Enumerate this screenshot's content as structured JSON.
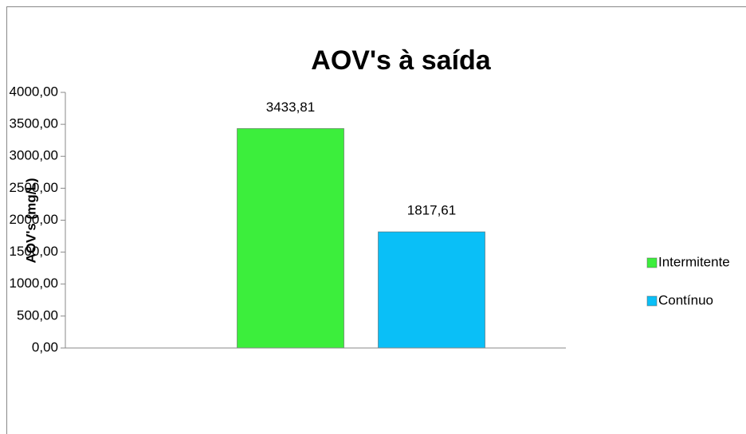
{
  "chart_data": {
    "type": "bar",
    "title": "AOV's à saída",
    "y_label": "AOV's (mg/L)",
    "categories": [
      null
    ],
    "series": [
      {
        "name": "Intermitente",
        "color": "#3cee3c",
        "values": [
          3433.81
        ],
        "value_labels": [
          "3433,81"
        ]
      },
      {
        "name": "Contínuo",
        "color": "#0abff7",
        "values": [
          1817.61
        ],
        "value_labels": [
          "1817,61"
        ]
      }
    ],
    "ylim": [
      0,
      4000
    ],
    "yticks": [
      {
        "value": 0,
        "label": "0,00"
      },
      {
        "value": 500,
        "label": "500,00"
      },
      {
        "value": 1000,
        "label": "1000,00"
      },
      {
        "value": 1500,
        "label": "1500,00"
      },
      {
        "value": 2000,
        "label": "2000,00"
      },
      {
        "value": 2500,
        "label": "2500,00"
      },
      {
        "value": 3000,
        "label": "3000,00"
      },
      {
        "value": 3500,
        "label": "3500,00"
      },
      {
        "value": 4000,
        "label": "4000,00"
      }
    ],
    "grid": false,
    "legend": "right"
  }
}
